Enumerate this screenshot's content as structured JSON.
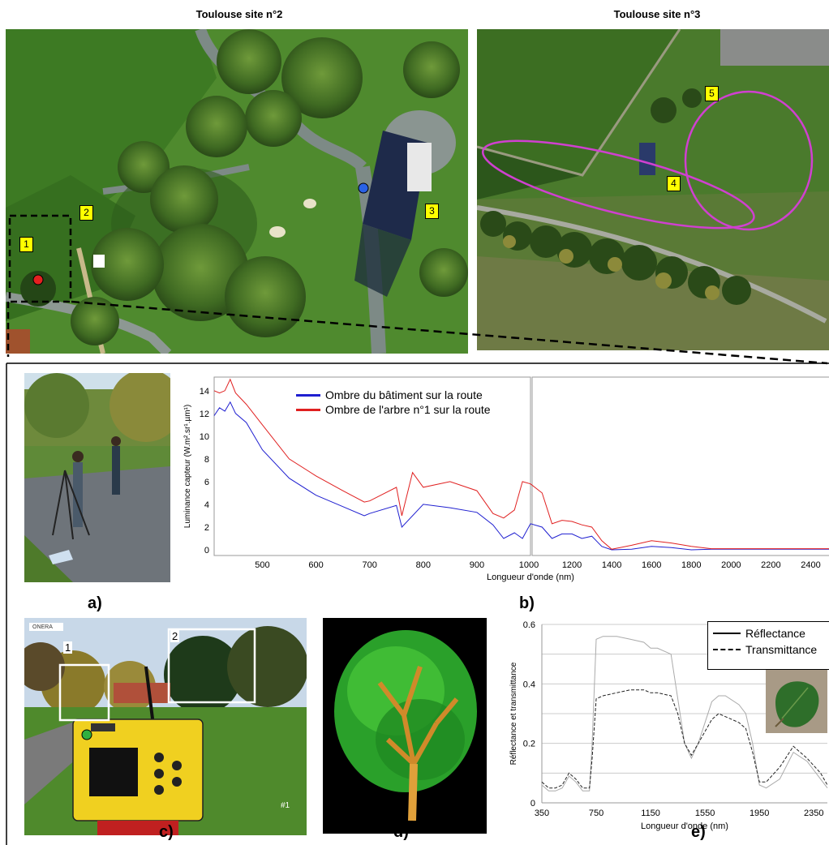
{
  "sites": {
    "left_title": "Toulouse site n°2",
    "right_title": "Toulouse site n°3",
    "left_markers": [
      "1",
      "2",
      "3"
    ],
    "right_markers": [
      "4",
      "5"
    ]
  },
  "panel_labels": {
    "a": "a)",
    "b": "b)",
    "c": "c)",
    "d": "d)",
    "e": "e)"
  },
  "photo_c": {
    "markers": [
      "1",
      "2"
    ],
    "caption": "#1",
    "sign": "ONERA"
  },
  "colors": {
    "blue_series": "#1f1fd0",
    "red_series": "#e02020",
    "ellipse": "#d040d0",
    "marker_bg": "#ffff00"
  },
  "chart_data": [
    {
      "type": "line",
      "ylabel": "Luminance capteur (W.m².sr¹.µm¹)",
      "xlabel": "Longueur d'onde (nm)",
      "xlim": [
        400,
        2500
      ],
      "ylim": [
        -0.5,
        15.2
      ],
      "xticks_left": [
        "500",
        "600",
        "700",
        "800",
        "900",
        "1000"
      ],
      "xticks_right": [
        "1000",
        "1200",
        "1400",
        "1600",
        "1800",
        "2000",
        "2200",
        "2400"
      ],
      "yticks": [
        "0",
        "2",
        "4",
        "6",
        "8",
        "10",
        "12",
        "14"
      ],
      "legend": [
        "Ombre du bâtiment sur la route",
        "Ombre de l'arbre n°1 sur la route"
      ],
      "series": [
        {
          "name": "Ombre du bâtiment sur la route",
          "x": [
            410,
            420,
            430,
            440,
            450,
            470,
            500,
            550,
            600,
            650,
            690,
            700,
            750,
            760,
            800,
            850,
            900,
            930,
            950,
            970,
            985,
            1000,
            1050,
            1100,
            1150,
            1200,
            1250,
            1300,
            1350,
            1400,
            1500,
            1600,
            1700,
            1800,
            1900,
            2000,
            2200,
            2400,
            2500
          ],
          "y": [
            11.8,
            12.5,
            12.2,
            13.0,
            12.0,
            11.2,
            8.8,
            6.3,
            4.8,
            3.8,
            3.0,
            3.2,
            3.9,
            2.0,
            4.0,
            3.7,
            3.3,
            2.2,
            1.0,
            1.5,
            1.0,
            2.3,
            2.0,
            1.0,
            1.4,
            1.4,
            1.0,
            1.2,
            0.3,
            0.0,
            0.05,
            0.3,
            0.2,
            0.0,
            0.05,
            0.05,
            0.05,
            0.05,
            0.05
          ]
        },
        {
          "name": "Ombre de l'arbre n°1 sur la route",
          "x": [
            410,
            420,
            430,
            440,
            450,
            470,
            500,
            550,
            600,
            650,
            690,
            700,
            750,
            760,
            780,
            800,
            850,
            900,
            930,
            950,
            970,
            985,
            1000,
            1050,
            1100,
            1150,
            1200,
            1250,
            1300,
            1350,
            1400,
            1500,
            1600,
            1700,
            1800,
            1900,
            2000,
            2200,
            2400,
            2500
          ],
          "y": [
            14.0,
            13.8,
            14.0,
            15.0,
            13.8,
            12.8,
            11.0,
            8.0,
            6.5,
            5.2,
            4.2,
            4.3,
            5.5,
            3.0,
            6.8,
            5.5,
            6.0,
            5.2,
            3.2,
            2.8,
            3.5,
            6.0,
            5.8,
            5.0,
            2.3,
            2.6,
            2.5,
            2.2,
            2.0,
            0.8,
            0.05,
            0.4,
            0.8,
            0.6,
            0.3,
            0.1,
            0.1,
            0.1,
            0.1,
            0.1
          ]
        }
      ]
    },
    {
      "type": "line",
      "ylabel": "Réflectance et transmittance",
      "xlabel": "Longueur d'onde (nm)",
      "xlim": [
        350,
        2450
      ],
      "ylim": [
        0,
        0.6
      ],
      "xticks": [
        "350",
        "750",
        "1150",
        "1550",
        "1950",
        "2350"
      ],
      "yticks": [
        "0",
        "0.2",
        "0.4",
        "0.6"
      ],
      "legend": [
        "Réflectance",
        "Transmittance"
      ],
      "series": [
        {
          "name": "Réflectance",
          "x": [
            350,
            400,
            450,
            500,
            550,
            600,
            650,
            700,
            720,
            750,
            800,
            900,
            1000,
            1100,
            1150,
            1200,
            1300,
            1350,
            1400,
            1450,
            1500,
            1600,
            1650,
            1700,
            1800,
            1850,
            1900,
            1950,
            2000,
            2100,
            2200,
            2300,
            2400,
            2450
          ],
          "y": [
            0.06,
            0.04,
            0.04,
            0.05,
            0.09,
            0.07,
            0.04,
            0.04,
            0.2,
            0.55,
            0.56,
            0.56,
            0.55,
            0.54,
            0.52,
            0.52,
            0.5,
            0.35,
            0.2,
            0.15,
            0.2,
            0.34,
            0.36,
            0.36,
            0.33,
            0.3,
            0.2,
            0.06,
            0.05,
            0.08,
            0.17,
            0.14,
            0.08,
            0.05
          ]
        },
        {
          "name": "Transmittance",
          "x": [
            350,
            400,
            450,
            500,
            550,
            600,
            650,
            700,
            720,
            750,
            800,
            900,
            1000,
            1100,
            1150,
            1200,
            1300,
            1350,
            1400,
            1450,
            1500,
            1600,
            1650,
            1700,
            1800,
            1850,
            1900,
            1950,
            2000,
            2100,
            2200,
            2300,
            2400,
            2450
          ],
          "y": [
            0.07,
            0.05,
            0.05,
            0.06,
            0.1,
            0.08,
            0.05,
            0.05,
            0.15,
            0.35,
            0.36,
            0.37,
            0.38,
            0.38,
            0.37,
            0.37,
            0.36,
            0.3,
            0.2,
            0.16,
            0.2,
            0.28,
            0.3,
            0.29,
            0.27,
            0.25,
            0.17,
            0.07,
            0.07,
            0.12,
            0.19,
            0.15,
            0.1,
            0.06
          ]
        }
      ]
    }
  ]
}
